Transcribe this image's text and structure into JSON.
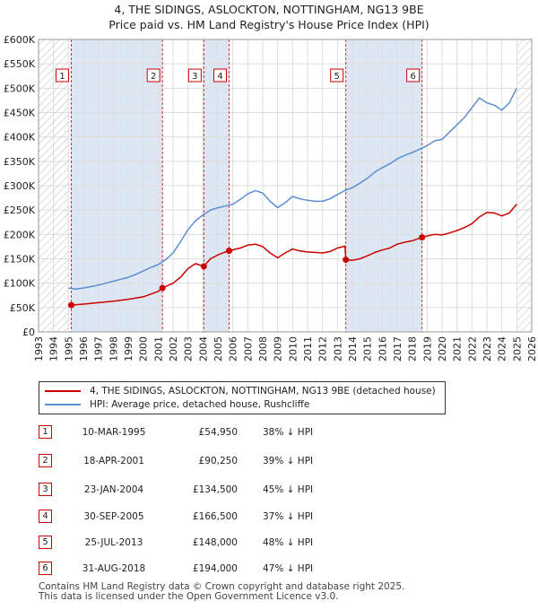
{
  "title": "4, THE SIDINGS, ASLOCKTON, NOTTINGHAM, NG13 9BE",
  "subtitle": "Price paid vs. HM Land Registry's House Price Index (HPI)",
  "colors": {
    "property": "#cc0000",
    "hpi": "#5b8fd1",
    "shade": "#dde6f3",
    "hatch": "#bbbbbb",
    "grid": "#dddddd"
  },
  "chart_data": {
    "type": "line",
    "ylim": [
      0,
      600000
    ],
    "xlim": [
      1993,
      2026
    ],
    "y_ticks": [
      0,
      50000,
      100000,
      150000,
      200000,
      250000,
      300000,
      350000,
      400000,
      450000,
      500000,
      550000,
      600000
    ],
    "y_tick_labels": [
      "£0",
      "£50K",
      "£100K",
      "£150K",
      "£200K",
      "£250K",
      "£300K",
      "£350K",
      "£400K",
      "£450K",
      "£500K",
      "£550K",
      "£600K"
    ],
    "x_ticks": [
      1993,
      1994,
      1995,
      1996,
      1997,
      1998,
      1999,
      2000,
      2001,
      2002,
      2003,
      2004,
      2005,
      2006,
      2007,
      2008,
      2009,
      2010,
      2011,
      2012,
      2013,
      2014,
      2015,
      2016,
      2017,
      2018,
      2019,
      2020,
      2021,
      2022,
      2023,
      2024,
      2025,
      2026
    ],
    "grid": true,
    "hatched_ranges": [
      [
        1993,
        1995.0
      ],
      [
        2025.0,
        2026
      ]
    ],
    "shaded_ranges": [
      [
        1995.19,
        2001.29
      ],
      [
        2004.06,
        2005.75
      ],
      [
        2013.56,
        2018.66
      ]
    ],
    "series": [
      {
        "name": "4, THE SIDINGS, ASLOCKTON, NOTTINGHAM, NG13 9BE (detached house)",
        "x": [
          1995.19,
          1996.0,
          1997.0,
          1998.0,
          1999.0,
          2000.0,
          2001.0,
          2001.29,
          2002.0,
          2002.5,
          2003.0,
          2003.5,
          2004.06,
          2004.5,
          2005.0,
          2005.5,
          2005.75,
          2006.5,
          2007.0,
          2007.5,
          2008.0,
          2008.5,
          2009.0,
          2009.5,
          2010.0,
          2010.5,
          2011.0,
          2011.5,
          2012.0,
          2012.5,
          2013.0,
          2013.5,
          2013.56,
          2014.0,
          2014.5,
          2015.0,
          2015.5,
          2016.0,
          2016.5,
          2017.0,
          2017.5,
          2018.0,
          2018.66,
          2019.0,
          2019.5,
          2020.0,
          2020.5,
          2021.0,
          2021.5,
          2022.0,
          2022.5,
          2023.0,
          2023.5,
          2024.0,
          2024.5,
          2025.0
        ],
        "values": [
          54950,
          57000,
          60000,
          63000,
          67000,
          72000,
          83000,
          90250,
          100000,
          112000,
          130000,
          140000,
          134500,
          150000,
          158000,
          164000,
          166500,
          172000,
          178000,
          180000,
          175000,
          162000,
          152000,
          162000,
          170000,
          166000,
          164000,
          163000,
          162000,
          165000,
          172000,
          176000,
          148000,
          147000,
          150000,
          156000,
          163000,
          168000,
          172000,
          180000,
          184000,
          187000,
          194000,
          197000,
          200000,
          199000,
          203000,
          208000,
          214000,
          222000,
          236000,
          245000,
          244000,
          238000,
          244000,
          262000
        ]
      },
      {
        "name": "HPI: Average price, detached house, Rushcliffe",
        "x": [
          1995.0,
          1995.5,
          1996.0,
          1996.5,
          1997.0,
          1997.5,
          1998.0,
          1998.5,
          1999.0,
          1999.5,
          2000.0,
          2000.5,
          2001.0,
          2001.5,
          2002.0,
          2002.5,
          2003.0,
          2003.5,
          2004.0,
          2004.5,
          2005.0,
          2005.5,
          2006.0,
          2006.5,
          2007.0,
          2007.5,
          2008.0,
          2008.5,
          2009.0,
          2009.5,
          2010.0,
          2010.5,
          2011.0,
          2011.5,
          2012.0,
          2012.5,
          2013.0,
          2013.5,
          2014.0,
          2014.5,
          2015.0,
          2015.5,
          2016.0,
          2016.5,
          2017.0,
          2017.5,
          2018.0,
          2018.5,
          2019.0,
          2019.5,
          2020.0,
          2020.5,
          2021.0,
          2021.5,
          2022.0,
          2022.5,
          2023.0,
          2023.5,
          2024.0,
          2024.5,
          2025.0
        ],
        "values": [
          90000,
          88000,
          90000,
          93000,
          96000,
          100000,
          104000,
          108000,
          112000,
          118000,
          125000,
          132000,
          138000,
          148000,
          162000,
          185000,
          210000,
          228000,
          240000,
          250000,
          255000,
          258000,
          262000,
          272000,
          283000,
          290000,
          285000,
          268000,
          255000,
          265000,
          278000,
          273000,
          270000,
          268000,
          268000,
          273000,
          282000,
          290000,
          296000,
          305000,
          315000,
          328000,
          337000,
          345000,
          355000,
          362000,
          368000,
          375000,
          382000,
          392000,
          395000,
          410000,
          425000,
          440000,
          460000,
          480000,
          470000,
          465000,
          455000,
          470000,
          500000
        ]
      }
    ],
    "markers": [
      {
        "label": "1",
        "x": 1995.19,
        "y": 54950
      },
      {
        "label": "2",
        "x": 2001.29,
        "y": 90250
      },
      {
        "label": "3",
        "x": 2004.06,
        "y": 134500
      },
      {
        "label": "4",
        "x": 2005.75,
        "y": 166500
      },
      {
        "label": "5",
        "x": 2013.56,
        "y": 148000
      },
      {
        "label": "6",
        "x": 2018.66,
        "y": 194000
      }
    ]
  },
  "legend": [
    "4, THE SIDINGS, ASLOCKTON, NOTTINGHAM, NG13 9BE (detached house)",
    "HPI: Average price, detached house, Rushcliffe"
  ],
  "sales": [
    {
      "num": "1",
      "date": "10-MAR-1995",
      "price": "£54,950",
      "hpi": "38% ↓ HPI"
    },
    {
      "num": "2",
      "date": "18-APR-2001",
      "price": "£90,250",
      "hpi": "39% ↓ HPI"
    },
    {
      "num": "3",
      "date": "23-JAN-2004",
      "price": "£134,500",
      "hpi": "45% ↓ HPI"
    },
    {
      "num": "4",
      "date": "30-SEP-2005",
      "price": "£166,500",
      "hpi": "37% ↓ HPI"
    },
    {
      "num": "5",
      "date": "25-JUL-2013",
      "price": "£148,000",
      "hpi": "48% ↓ HPI"
    },
    {
      "num": "6",
      "date": "31-AUG-2018",
      "price": "£194,000",
      "hpi": "47% ↓ HPI"
    }
  ],
  "footer": {
    "line1": "Contains HM Land Registry data © Crown copyright and database right 2025.",
    "line2": "This data is licensed under the Open Government Licence v3.0."
  }
}
